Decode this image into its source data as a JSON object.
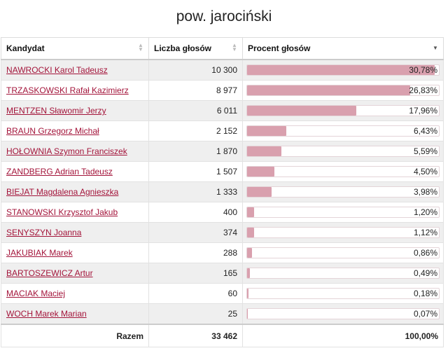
{
  "title": "pow. jarociński",
  "table": {
    "headers": {
      "candidate": "Kandydat",
      "votes": "Liczba głosów",
      "percent": "Procent głosów"
    },
    "rows": [
      {
        "name": "NAWROCKI Karol Tadeusz",
        "votes": "10 300",
        "percent": "30,78%",
        "share": 30.78
      },
      {
        "name": "TRZASKOWSKI Rafał Kazimierz",
        "votes": "8 977",
        "percent": "26,83%",
        "share": 26.83
      },
      {
        "name": "MENTZEN Sławomir Jerzy",
        "votes": "6 011",
        "percent": "17,96%",
        "share": 17.96
      },
      {
        "name": "BRAUN Grzegorz Michał",
        "votes": "2 152",
        "percent": "6,43%",
        "share": 6.43
      },
      {
        "name": "HOŁOWNIA Szymon Franciszek",
        "votes": "1 870",
        "percent": "5,59%",
        "share": 5.59
      },
      {
        "name": "ZANDBERG Adrian Tadeusz",
        "votes": "1 507",
        "percent": "4,50%",
        "share": 4.5
      },
      {
        "name": "BIEJAT Magdalena Agnieszka",
        "votes": "1 333",
        "percent": "3,98%",
        "share": 3.98
      },
      {
        "name": "STANOWSKI Krzysztof Jakub",
        "votes": "400",
        "percent": "1,20%",
        "share": 1.2
      },
      {
        "name": "SENYSZYN Joanna",
        "votes": "374",
        "percent": "1,12%",
        "share": 1.12
      },
      {
        "name": "JAKUBIAK Marek",
        "votes": "288",
        "percent": "0,86%",
        "share": 0.86
      },
      {
        "name": "BARTOSZEWICZ Artur",
        "votes": "165",
        "percent": "0,49%",
        "share": 0.49
      },
      {
        "name": "MACIAK Maciej",
        "votes": "60",
        "percent": "0,18%",
        "share": 0.18
      },
      {
        "name": "WOCH Marek Marian",
        "votes": "25",
        "percent": "0,07%",
        "share": 0.07
      }
    ],
    "footer": {
      "label": "Razem",
      "votes": "33 462",
      "percent": "100,00%"
    }
  },
  "colors": {
    "link": "#a3143a",
    "bar": "#d9a0ae"
  }
}
